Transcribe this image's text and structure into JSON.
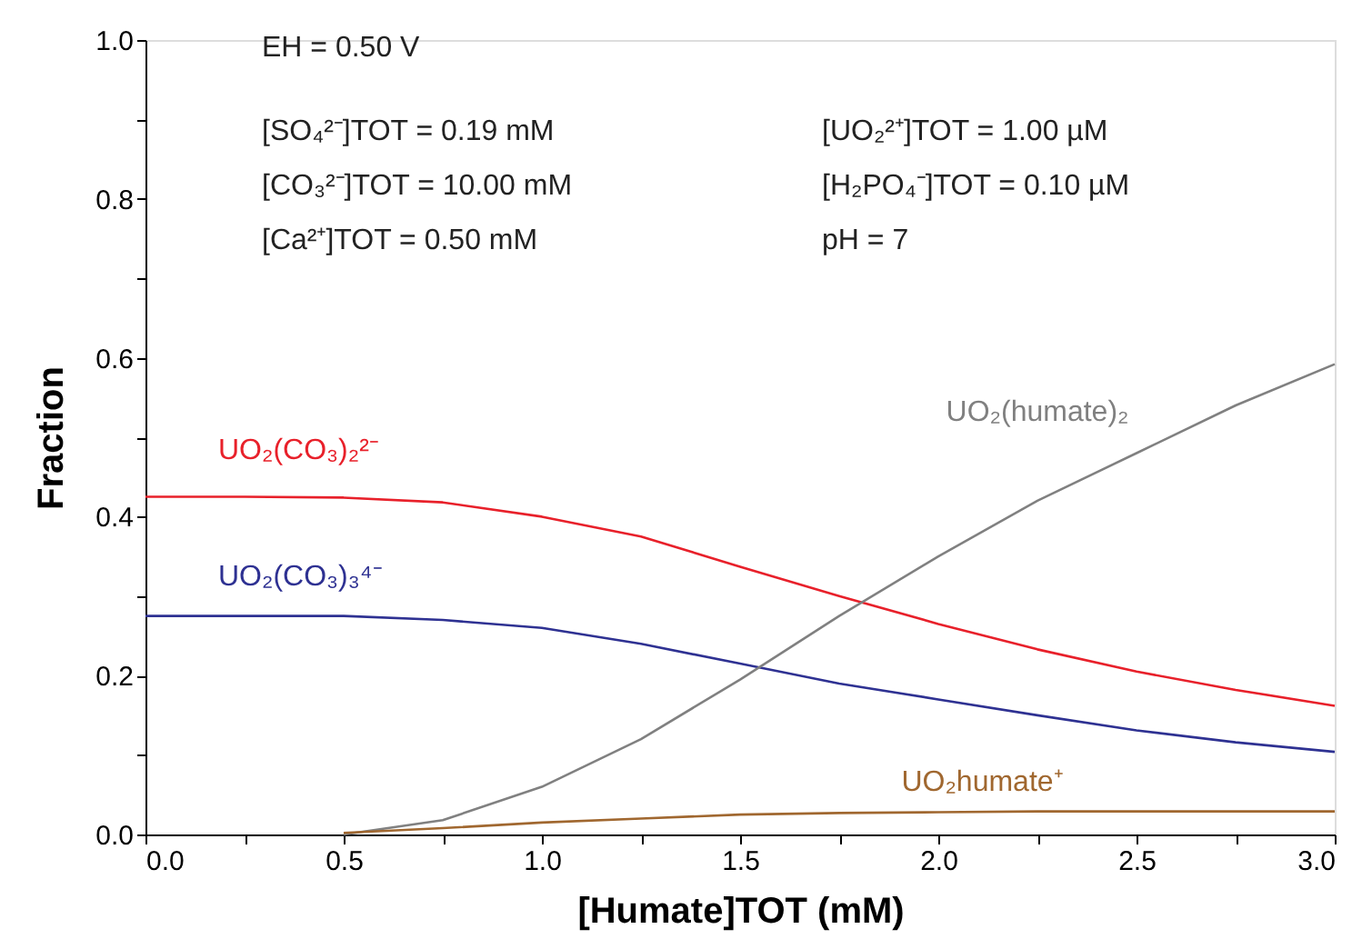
{
  "chart_data": {
    "type": "line",
    "xlabel": "[Humate]TOT (mM)",
    "ylabel": "Fraction",
    "x": [
      0,
      0.25,
      0.5,
      0.75,
      1.0,
      1.25,
      1.5,
      1.75,
      2.0,
      2.25,
      2.5,
      2.75,
      3.0
    ],
    "xlim": [
      0,
      3.0
    ],
    "xticks": [
      "0.0",
      {
        "value": 0.25,
        "label": null
      },
      0.5,
      {
        "value": 0.75,
        "label": null
      },
      "1.0",
      {
        "value": 1.25,
        "label": null
      },
      1.5,
      {
        "value": 1.75,
        "label": null
      },
      "2.0",
      {
        "value": 2.25,
        "label": null
      },
      2.5,
      {
        "value": 2.75,
        "label": null
      },
      "3.0"
    ],
    "ylim": [
      0,
      1.0
    ],
    "yticks": [
      "0.0",
      {
        "value": 0.1,
        "label": null
      },
      0.2,
      {
        "value": 0.3,
        "label": null
      },
      0.4,
      {
        "value": 0.5,
        "label": null
      },
      0.6,
      {
        "value": 0.7,
        "label": null
      },
      0.8,
      {
        "value": 0.9,
        "label": null
      },
      "1.0"
    ],
    "series": [
      {
        "name": "UO₂(CO₃)₂²⁻",
        "color": "#e8202a",
        "values": [
          0.425,
          0.425,
          0.424,
          0.418,
          0.4,
          0.375,
          0.337,
          0.3,
          0.265,
          0.233,
          0.205,
          0.182,
          0.162
        ]
      },
      {
        "name": "UO₂(CO₃)₃⁴⁻",
        "color": "#2e3192",
        "values": [
          0.275,
          0.275,
          0.275,
          0.27,
          0.26,
          0.24,
          0.215,
          0.19,
          0.17,
          0.15,
          0.131,
          0.116,
          0.104
        ]
      },
      {
        "name": "UO₂(humate)₂",
        "color": "#808080",
        "values": [
          null,
          null,
          0,
          0.018,
          0.06,
          0.12,
          0.195,
          0.275,
          0.35,
          0.42,
          0.48,
          0.54,
          0.592
        ]
      },
      {
        "name": "UO₂humate⁺",
        "color": "#a0672f",
        "values": [
          null,
          null,
          0.002,
          0.008,
          0.015,
          0.02,
          0.025,
          0.027,
          0.028,
          0.029,
          0.029,
          0.029,
          0.029
        ]
      }
    ],
    "annotations": [
      "EH = 0.50 V",
      "[SO₄²⁻]TOT = 0.19 mM",
      "[CO₃²⁻]TOT = 10.00 mM",
      "[Ca²⁺]TOT = 0.50 mM",
      "[UO₂²⁺]TOT = 1.00 µM",
      "[H₂PO₄⁻]TOT = 0.10 µM",
      "pH = 7"
    ],
    "grid": false,
    "legend": false
  }
}
